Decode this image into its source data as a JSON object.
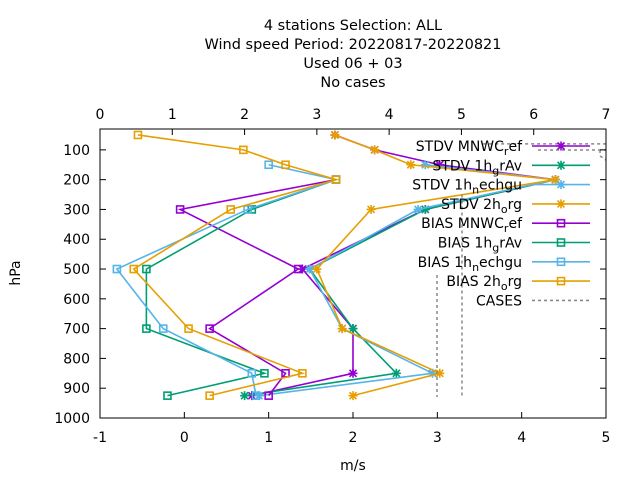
{
  "chart_data": {
    "type": "line",
    "title_lines": [
      "4 stations Selection: ALL",
      "Wind speed  Period: 20220817-20220821",
      "Used  06 + 03",
      "No cases"
    ],
    "xlabel": "m/s",
    "ylabel": "hPa",
    "xlim": [
      -1,
      5
    ],
    "ylim": [
      1000,
      30
    ],
    "y_inverted": true,
    "xticks": [
      -1,
      0,
      1,
      2,
      3,
      4,
      5
    ],
    "yticks": [
      100,
      200,
      300,
      400,
      500,
      600,
      700,
      800,
      900,
      1000
    ],
    "x2lim": [
      0,
      7
    ],
    "x2ticks": [
      0,
      1,
      2,
      3,
      4,
      5,
      6,
      7
    ],
    "grid": false,
    "legend_position": "top-right",
    "levels": [
      50,
      100,
      150,
      200,
      250,
      300,
      400,
      500,
      700,
      850,
      925
    ],
    "series": [
      {
        "name": "STDV MNWC_ref",
        "color": "#9400d3",
        "marker": "x",
        "axis": "x2",
        "levels": [
          50,
          100,
          150,
          200,
          300,
          500,
          700,
          850,
          925
        ],
        "values": [
          3.25,
          3.8,
          4.7,
          6.3,
          4.5,
          2.8,
          3.5,
          3.5,
          2.1
        ]
      },
      {
        "name": "STDV 1h_grAv",
        "color": "#009e73",
        "marker": "x",
        "axis": "x2",
        "levels": [
          200,
          300,
          500,
          700,
          850,
          925
        ],
        "values": [
          6.3,
          4.5,
          2.9,
          3.5,
          4.1,
          2.0
        ]
      },
      {
        "name": "STDV 1h_nechgu",
        "color": "#56b4e9",
        "marker": "x",
        "axis": "x2",
        "levels": [
          150,
          200,
          300,
          500,
          700,
          850,
          925
        ],
        "values": [
          4.5,
          6.3,
          4.4,
          2.9,
          3.35,
          4.6,
          2.2
        ]
      },
      {
        "name": "STDV 2h_org",
        "color": "#e69f00",
        "marker": "x",
        "axis": "x2",
        "levels": [
          50,
          100,
          150,
          200,
          300,
          500,
          700,
          850,
          925
        ],
        "values": [
          3.25,
          3.8,
          4.3,
          6.3,
          3.75,
          3.0,
          3.35,
          4.7,
          3.5
        ]
      },
      {
        "name": "BIAS MNWC_ref",
        "color": "#9400d3",
        "marker": "square",
        "levels": [
          200,
          300,
          500,
          700,
          850,
          925
        ],
        "values": [
          1.8,
          -0.05,
          1.35,
          0.3,
          1.2,
          1.0
        ]
      },
      {
        "name": "BIAS 1h_grAv",
        "color": "#009e73",
        "marker": "square",
        "levels": [
          200,
          300,
          500,
          700,
          850,
          925
        ],
        "values": [
          1.8,
          0.8,
          -0.45,
          -0.45,
          0.95,
          -0.2
        ]
      },
      {
        "name": "BIAS 1h_nechgu",
        "color": "#56b4e9",
        "marker": "square",
        "levels": [
          150,
          200,
          300,
          500,
          700,
          850,
          925
        ],
        "values": [
          1.0,
          1.8,
          0.75,
          -0.8,
          -0.25,
          0.8,
          0.85
        ]
      },
      {
        "name": "BIAS 2h_org",
        "color": "#e69f00",
        "marker": "square",
        "levels": [
          50,
          100,
          150,
          200,
          300,
          500,
          700,
          850,
          925
        ],
        "values": [
          -0.55,
          0.7,
          1.2,
          1.8,
          0.55,
          -0.6,
          0.05,
          1.4,
          0.3
        ]
      },
      {
        "name": "CASES",
        "color": "#888888",
        "marker": "none",
        "dashed": true,
        "levels": [
          50,
          80,
          100,
          250,
          700,
          850,
          925
        ],
        "values": [
          0,
          0,
          0,
          0,
          0,
          0,
          0
        ]
      }
    ]
  },
  "legend": [
    {
      "name": "STDV MNWC_ref",
      "main": "STDV MNWC",
      "sub": "r",
      "rest": "ef",
      "color": "#9400d3",
      "marker": "x",
      "dashed": false
    },
    {
      "name": "STDV 1h_grAv",
      "main": "STDV 1h",
      "sub": "g",
      "rest": "rAv",
      "color": "#009e73",
      "marker": "x",
      "dashed": false
    },
    {
      "name": "STDV 1h_nechgu",
      "main": "STDV 1h",
      "sub": "n",
      "rest": "echgu",
      "color": "#56b4e9",
      "marker": "x",
      "dashed": false
    },
    {
      "name": "STDV 2h_org",
      "main": "STDV 2h",
      "sub": "o",
      "rest": "rg",
      "color": "#e69f00",
      "marker": "x",
      "dashed": false
    },
    {
      "name": "BIAS MNWC_ref",
      "main": "BIAS MNWC",
      "sub": "r",
      "rest": "ef",
      "color": "#9400d3",
      "marker": "square",
      "dashed": false
    },
    {
      "name": "BIAS 1h_grAv",
      "main": "BIAS 1h",
      "sub": "g",
      "rest": "rAv",
      "color": "#009e73",
      "marker": "square",
      "dashed": false
    },
    {
      "name": "BIAS 1h_nechgu",
      "main": "BIAS 1h",
      "sub": "n",
      "rest": "echgu",
      "color": "#56b4e9",
      "marker": "square",
      "dashed": false
    },
    {
      "name": "BIAS 2h_org",
      "main": "BIAS 2h",
      "sub": "o",
      "rest": "rg",
      "color": "#e69f00",
      "marker": "square",
      "dashed": false
    },
    {
      "name": "CASES",
      "main": "CASES",
      "sub": "",
      "rest": "",
      "color": "#888888",
      "marker": "none",
      "dashed": true
    }
  ]
}
